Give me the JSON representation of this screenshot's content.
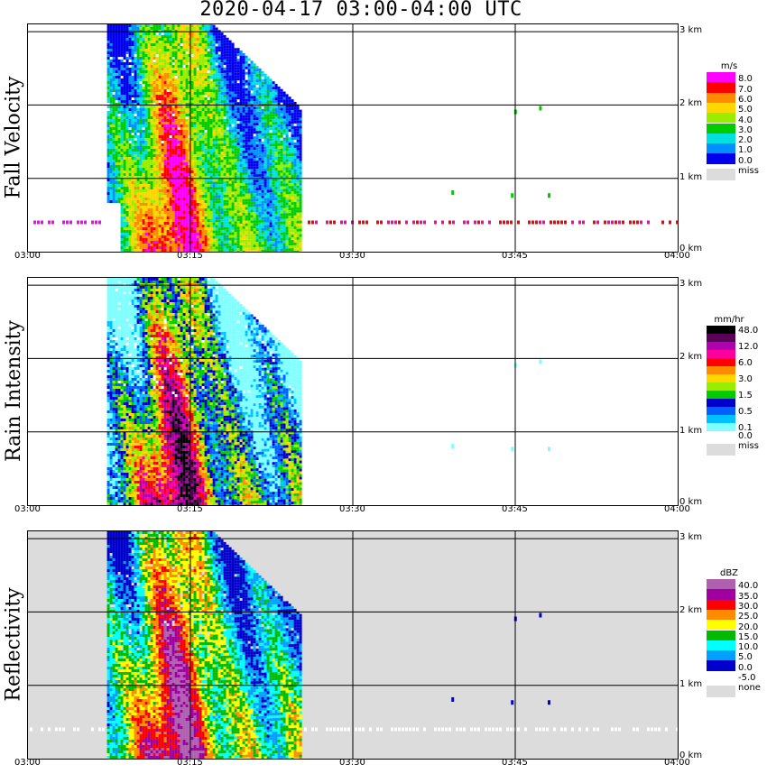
{
  "title": "2020-04-17   03:00-04:00 UTC",
  "time_labels": [
    "03:00",
    "03:15",
    "03:30",
    "03:45",
    "04:00"
  ],
  "height_labels": [
    "0 km",
    "1 km",
    "2 km",
    "3 km"
  ],
  "panels": [
    {
      "id": "fall_velocity",
      "title": "Fall Velocity",
      "unit": "m/s",
      "background": "#ffffff",
      "legend": [
        {
          "label": "8.0",
          "color": "#ff00ff"
        },
        {
          "label": "7.0",
          "color": "#ff0000"
        },
        {
          "label": "6.0",
          "color": "#ff8c00"
        },
        {
          "label": "5.0",
          "color": "#ffd700"
        },
        {
          "label": "4.0",
          "color": "#99ee00"
        },
        {
          "label": "3.0",
          "color": "#00cc00"
        },
        {
          "label": "2.0",
          "color": "#00e0e0"
        },
        {
          "label": "1.0",
          "color": "#0090ff"
        },
        {
          "label": "0.0",
          "color": "#0000ee"
        }
      ],
      "missing_label": "miss",
      "missing_color": "#dcdcdc"
    },
    {
      "id": "rain_intensity",
      "title": "Rain Intensity",
      "unit": "mm/hr",
      "background": "#ffffff",
      "legend": [
        {
          "label": "48.0",
          "color": "#000000"
        },
        {
          "label": "",
          "color": "#5a005a"
        },
        {
          "label": "12.0",
          "color": "#b000b0"
        },
        {
          "label": "",
          "color": "#ff00a0"
        },
        {
          "label": "6.0",
          "color": "#ff0000"
        },
        {
          "label": "",
          "color": "#ff8c00"
        },
        {
          "label": "3.0",
          "color": "#ffd700"
        },
        {
          "label": "",
          "color": "#99ee00"
        },
        {
          "label": "1.5",
          "color": "#00cc00"
        },
        {
          "label": "",
          "color": "#0000cc"
        },
        {
          "label": "0.5",
          "color": "#0060ff"
        },
        {
          "label": "",
          "color": "#00c0ff"
        },
        {
          "label": "0.1",
          "color": "#80ffff"
        },
        {
          "label": "0.0",
          "color": "#ffffff"
        }
      ],
      "missing_label": "miss",
      "missing_color": "#dcdcdc"
    },
    {
      "id": "reflectivity",
      "title": "Reflectivity",
      "unit": "dBZ",
      "background": "#dcdcdc",
      "legend": [
        {
          "label": "40.0",
          "color": "#b060b0"
        },
        {
          "label": "35.0",
          "color": "#a000a0"
        },
        {
          "label": "30.0",
          "color": "#ff0000"
        },
        {
          "label": "25.0",
          "color": "#ff8c00"
        },
        {
          "label": "20.0",
          "color": "#ffff00"
        },
        {
          "label": "15.0",
          "color": "#00bb00"
        },
        {
          "label": "10.0",
          "color": "#00ffff"
        },
        {
          "label": "5.0",
          "color": "#00a0ff"
        },
        {
          "label": "0.0",
          "color": "#0000cc"
        },
        {
          "label": "-5.0",
          "color": "#ffffff"
        }
      ],
      "missing_label": "none",
      "missing_color": "#dcdcdc"
    }
  ],
  "chart_data": {
    "type": "heatmap",
    "title": "2020-04-17   03:00-04:00 UTC",
    "x": {
      "range": [
        "03:00",
        "04:00"
      ],
      "ticks": [
        "03:00",
        "03:15",
        "03:30",
        "03:45",
        "04:00"
      ],
      "unit": "UTC"
    },
    "y": {
      "range_km": [
        0,
        3.1
      ],
      "ticks": [
        "0 km",
        "1 km",
        "2 km",
        "3 km"
      ]
    },
    "grid": true,
    "panels": [
      "Fall Velocity",
      "Rain Intensity",
      "Reflectivity"
    ],
    "precipitation_event": {
      "start": "03:07",
      "end": "03:25",
      "max_height_km": 3.1
    },
    "notable": {
      "bright_band_height_km": 0.4,
      "sparse_echoes_after": "03:38"
    }
  }
}
